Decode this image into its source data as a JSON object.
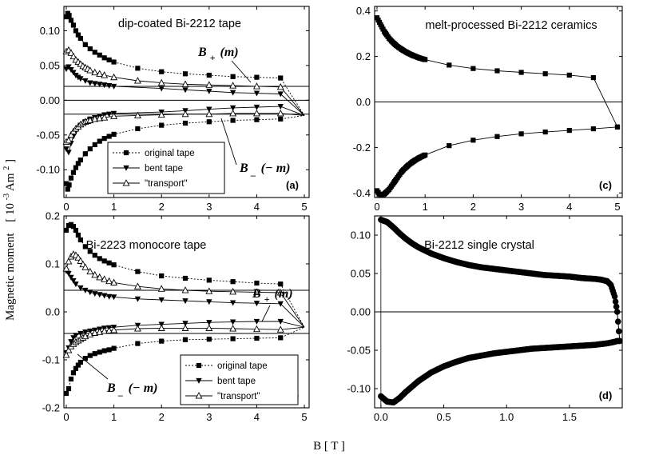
{
  "figure": {
    "ylabel": "Magnetic moment",
    "yunit": "[ 10",
    "yunit_exp": "-3",
    "yunit_tail": " Am",
    "yunit_sq": "2",
    "yunit_close": " ]",
    "xlabel": "B  [ T ]"
  },
  "math_labels": {
    "B": "B",
    "plus": "+",
    "minus": "_",
    "m_pos": "(m)",
    "m_neg": "(− m)"
  },
  "legend_entries": [
    "original tape",
    "bent tape",
    "\"transport\""
  ],
  "chart_data": [
    {
      "id": "a",
      "type": "line",
      "panel_label": "(a)",
      "title": "dip-coated Bi-2212 tape",
      "xlim": [
        -0.05,
        5.1
      ],
      "ylim": [
        -0.14,
        0.135
      ],
      "xticks": [
        0,
        1,
        2,
        3,
        4,
        5
      ],
      "yticks": [
        -0.1,
        -0.05,
        0.0,
        0.05,
        0.1
      ],
      "ytick_labels": [
        "-0.10",
        "-0.05",
        "0.00",
        "0.05",
        "0.10"
      ],
      "hlines": [
        0.0,
        0.02,
        -0.02
      ],
      "legend": "bottom-left",
      "series": [
        {
          "name": "original tape",
          "marker": "square",
          "style": "dotted",
          "x": [
            0.0,
            0.03,
            0.06,
            0.1,
            0.15,
            0.2,
            0.25,
            0.3,
            0.4,
            0.5,
            0.6,
            0.7,
            0.8,
            0.9,
            1.0,
            1.5,
            2.0,
            2.5,
            3.0,
            3.5,
            4.0,
            4.5,
            5.0
          ],
          "y_upper": [
            0.12,
            0.125,
            0.122,
            0.115,
            0.108,
            0.1,
            0.094,
            0.089,
            0.08,
            0.074,
            0.069,
            0.065,
            0.061,
            0.058,
            0.055,
            0.046,
            0.041,
            0.038,
            0.036,
            0.034,
            0.033,
            0.032,
            -0.022
          ],
          "y_lower": [
            -0.12,
            -0.128,
            -0.122,
            -0.112,
            -0.104,
            -0.097,
            -0.091,
            -0.086,
            -0.077,
            -0.07,
            -0.064,
            -0.059,
            -0.055,
            -0.052,
            -0.049,
            -0.041,
            -0.036,
            -0.033,
            -0.031,
            -0.029,
            -0.028,
            -0.027,
            -0.022
          ]
        },
        {
          "name": "bent tape",
          "marker": "triangle-down",
          "style": "solid",
          "x": [
            0.0,
            0.05,
            0.1,
            0.15,
            0.2,
            0.25,
            0.3,
            0.4,
            0.5,
            0.6,
            0.7,
            0.8,
            0.9,
            1.0,
            2.0,
            2.5,
            3.0,
            3.5,
            4.0,
            4.5,
            5.0
          ],
          "y_upper": [
            0.045,
            0.048,
            0.044,
            0.04,
            0.036,
            0.033,
            0.031,
            0.028,
            0.025,
            0.024,
            0.023,
            0.022,
            0.021,
            0.02,
            0.017,
            0.015,
            0.013,
            0.011,
            0.01,
            0.009,
            -0.022
          ],
          "y_lower": [
            -0.07,
            -0.075,
            -0.062,
            -0.052,
            -0.045,
            -0.04,
            -0.036,
            -0.031,
            -0.027,
            -0.025,
            -0.023,
            -0.021,
            -0.02,
            -0.019,
            -0.017,
            -0.015,
            -0.013,
            -0.011,
            -0.01,
            -0.009,
            -0.022
          ]
        },
        {
          "name": "\"transport\"",
          "marker": "triangle-up",
          "style": "solid",
          "x": [
            0.0,
            0.05,
            0.1,
            0.15,
            0.2,
            0.25,
            0.3,
            0.35,
            0.4,
            0.45,
            0.5,
            0.6,
            0.7,
            0.8,
            1.0,
            1.5,
            2.0,
            2.5,
            3.0,
            3.5,
            4.0,
            4.5,
            5.0
          ],
          "y_upper": [
            0.07,
            0.072,
            0.068,
            0.063,
            0.058,
            0.055,
            0.052,
            0.049,
            0.047,
            0.045,
            0.043,
            0.04,
            0.038,
            0.036,
            0.033,
            0.028,
            0.025,
            0.023,
            0.022,
            0.021,
            0.02,
            0.019,
            -0.022
          ],
          "y_lower": [
            -0.06,
            -0.058,
            -0.05,
            -0.045,
            -0.041,
            -0.038,
            -0.035,
            -0.033,
            -0.031,
            -0.03,
            -0.029,
            -0.027,
            -0.026,
            -0.025,
            -0.023,
            -0.022,
            -0.021,
            -0.02,
            -0.02,
            -0.019,
            -0.019,
            -0.019,
            -0.022
          ]
        }
      ]
    },
    {
      "id": "b",
      "type": "line",
      "panel_label": "(b)",
      "title": "Bi-2223 monocore tape",
      "xlim": [
        -0.05,
        5.1
      ],
      "ylim": [
        -0.2,
        0.2
      ],
      "xticks": [
        0,
        1,
        2,
        3,
        4,
        5
      ],
      "yticks": [
        -0.2,
        -0.1,
        0.0,
        0.1,
        0.2
      ],
      "ytick_labels": [
        "-0.2",
        "-0.1",
        "0.0",
        "0.1",
        "0.2"
      ],
      "hlines": [
        0.045,
        -0.045
      ],
      "legend": "bottom-right",
      "series": [
        {
          "name": "original tape",
          "marker": "square",
          "style": "dotted",
          "x": [
            0.0,
            0.05,
            0.1,
            0.15,
            0.2,
            0.25,
            0.3,
            0.4,
            0.5,
            0.6,
            0.7,
            0.8,
            0.9,
            1.0,
            1.5,
            2.0,
            2.5,
            3.0,
            3.5,
            4.0,
            4.5,
            5.0
          ],
          "y_upper": [
            0.17,
            0.18,
            0.182,
            0.178,
            0.17,
            0.16,
            0.15,
            0.136,
            0.126,
            0.118,
            0.111,
            0.106,
            0.102,
            0.098,
            0.084,
            0.075,
            0.07,
            0.066,
            0.063,
            0.06,
            0.058,
            -0.032
          ],
          "y_lower": [
            -0.17,
            -0.16,
            -0.14,
            -0.127,
            -0.118,
            -0.111,
            -0.105,
            -0.097,
            -0.091,
            -0.087,
            -0.084,
            -0.081,
            -0.079,
            -0.076,
            -0.066,
            -0.061,
            -0.058,
            -0.057,
            -0.056,
            -0.055,
            -0.054,
            -0.032
          ]
        },
        {
          "name": "bent tape",
          "marker": "triangle-down",
          "style": "solid",
          "x": [
            0.0,
            0.05,
            0.1,
            0.15,
            0.2,
            0.3,
            0.4,
            0.5,
            0.6,
            0.7,
            0.8,
            0.9,
            1.0,
            1.5,
            2.0,
            2.5,
            3.0,
            3.5,
            4.0,
            4.5,
            5.0
          ],
          "y_upper": [
            0.085,
            0.08,
            0.072,
            0.065,
            0.058,
            0.05,
            0.045,
            0.041,
            0.038,
            0.036,
            0.034,
            0.032,
            0.031,
            0.027,
            0.025,
            0.023,
            0.021,
            0.019,
            0.018,
            0.017,
            -0.032
          ],
          "y_lower": [
            -0.085,
            -0.075,
            -0.062,
            -0.054,
            -0.049,
            -0.045,
            -0.042,
            -0.04,
            -0.038,
            -0.036,
            -0.034,
            -0.033,
            -0.032,
            -0.028,
            -0.026,
            -0.024,
            -0.022,
            -0.021,
            -0.02,
            -0.02,
            -0.032
          ]
        },
        {
          "name": "\"transport\"",
          "marker": "triangle-up",
          "style": "solid",
          "x": [
            0.0,
            0.05,
            0.1,
            0.15,
            0.2,
            0.25,
            0.3,
            0.35,
            0.4,
            0.5,
            0.6,
            0.7,
            0.8,
            0.9,
            1.0,
            1.5,
            2.0,
            2.5,
            3.0,
            3.5,
            4.0,
            4.5,
            5.0
          ],
          "y_upper": [
            0.09,
            0.105,
            0.115,
            0.12,
            0.118,
            0.113,
            0.106,
            0.099,
            0.093,
            0.084,
            0.077,
            0.072,
            0.068,
            0.064,
            0.061,
            0.053,
            0.048,
            0.045,
            0.043,
            0.042,
            0.041,
            0.04,
            -0.032
          ],
          "y_lower": [
            -0.09,
            -0.08,
            -0.072,
            -0.067,
            -0.063,
            -0.06,
            -0.057,
            -0.054,
            -0.051,
            -0.047,
            -0.044,
            -0.042,
            -0.04,
            -0.039,
            -0.038,
            -0.035,
            -0.034,
            -0.034,
            -0.034,
            -0.035,
            -0.036,
            -0.037,
            -0.032
          ]
        }
      ]
    },
    {
      "id": "c",
      "type": "line",
      "panel_label": "(c)",
      "title": "melt-processed Bi-2212 ceramics",
      "xlim": [
        -0.05,
        5.1
      ],
      "ylim": [
        -0.42,
        0.42
      ],
      "xticks": [
        0,
        1,
        2,
        3,
        4,
        5
      ],
      "yticks": [
        -0.4,
        -0.2,
        0.0,
        0.2,
        0.4
      ],
      "ytick_labels": [
        "-0.4",
        "-0.2",
        "0.0",
        "0.2",
        "0.4"
      ],
      "hlines": [
        0.0
      ],
      "series": [
        {
          "name": "",
          "marker": "square",
          "style": "solid",
          "x": [
            0.0,
            0.05,
            0.1,
            0.15,
            0.2,
            0.25,
            0.3,
            0.35,
            0.4,
            0.45,
            0.5,
            0.55,
            0.6,
            0.65,
            0.7,
            0.75,
            0.8,
            0.85,
            0.9,
            0.95,
            1.0,
            1.5,
            2.0,
            2.5,
            3.0,
            3.5,
            4.0,
            4.5,
            5.0
          ],
          "y_upper": [
            0.37,
            0.35,
            0.33,
            0.31,
            0.295,
            0.28,
            0.268,
            0.258,
            0.248,
            0.24,
            0.233,
            0.226,
            0.22,
            0.214,
            0.209,
            0.204,
            0.2,
            0.196,
            0.192,
            0.189,
            0.186,
            0.162,
            0.147,
            0.137,
            0.13,
            0.124,
            0.118,
            0.107,
            -0.11
          ],
          "y_lower": [
            -0.39,
            -0.405,
            -0.41,
            -0.405,
            -0.395,
            -0.385,
            -0.37,
            -0.355,
            -0.34,
            -0.325,
            -0.31,
            -0.298,
            -0.288,
            -0.278,
            -0.27,
            -0.262,
            -0.255,
            -0.249,
            -0.243,
            -0.238,
            -0.233,
            -0.192,
            -0.168,
            -0.152,
            -0.14,
            -0.132,
            -0.125,
            -0.118,
            -0.11
          ]
        }
      ]
    },
    {
      "id": "d",
      "type": "line",
      "panel_label": "(d)",
      "title": "Bi-2212 single crystal",
      "xlim": [
        -0.05,
        1.92
      ],
      "ylim": [
        -0.125,
        0.125
      ],
      "xticks": [
        0.0,
        0.5,
        1.0,
        1.5
      ],
      "xtick_labels": [
        "0.0",
        "0.5",
        "1.0",
        "1.5"
      ],
      "yticks": [
        -0.1,
        -0.05,
        0.0,
        0.05,
        0.1
      ],
      "ytick_labels": [
        "-0.10",
        "-0.05",
        "0.00",
        "0.05",
        "0.10"
      ],
      "hlines": [
        0.0
      ],
      "series": [
        {
          "name": "",
          "marker": "dense",
          "style": "solid",
          "x": [
            0.0,
            0.05,
            0.1,
            0.15,
            0.2,
            0.25,
            0.3,
            0.4,
            0.5,
            0.6,
            0.7,
            0.8,
            0.9,
            1.0,
            1.1,
            1.2,
            1.3,
            1.4,
            1.5,
            1.6,
            1.7,
            1.75,
            1.8,
            1.83,
            1.86,
            1.88,
            1.9
          ],
          "y_upper": [
            0.12,
            0.117,
            0.11,
            0.102,
            0.095,
            0.089,
            0.084,
            0.076,
            0.07,
            0.065,
            0.061,
            0.058,
            0.056,
            0.054,
            0.052,
            0.05,
            0.048,
            0.047,
            0.046,
            0.044,
            0.043,
            0.042,
            0.04,
            0.035,
            0.02,
            0.0,
            -0.038
          ],
          "y_lower": [
            -0.11,
            -0.117,
            -0.118,
            -0.112,
            -0.104,
            -0.097,
            -0.09,
            -0.079,
            -0.071,
            -0.065,
            -0.06,
            -0.057,
            -0.054,
            -0.052,
            -0.05,
            -0.048,
            -0.047,
            -0.046,
            -0.045,
            -0.044,
            -0.043,
            -0.042,
            -0.041,
            -0.04,
            -0.039,
            -0.038,
            -0.038
          ]
        }
      ]
    }
  ]
}
